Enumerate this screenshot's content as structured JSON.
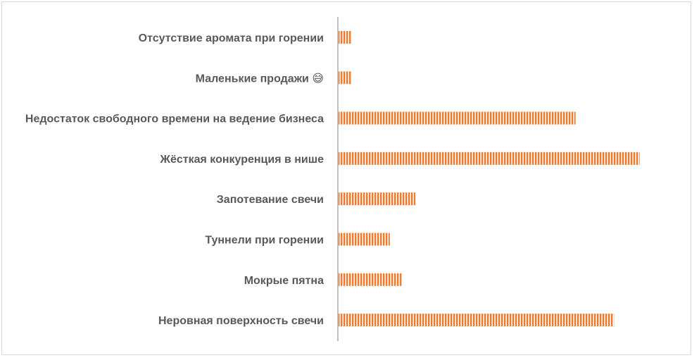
{
  "chart_data": {
    "type": "bar",
    "orientation": "horizontal",
    "title": "",
    "xlabel": "",
    "ylabel": "",
    "categories": [
      "Отсутствие аромата при горении",
      "Маленькие продажи 😅",
      "Недостаток свободного времени на ведение бизнеса",
      "Жёсткая конкуренция в нише",
      "Запотевание свечи",
      "Туннели при горении",
      "Мокрые пятна",
      "Неровная поверхность свечи"
    ],
    "values": [
      2,
      2,
      37,
      47,
      12,
      8,
      10,
      43
    ],
    "xlim": [
      0,
      50
    ],
    "grid": false,
    "legend": "none",
    "axis_labels_visible": false,
    "colors": {
      "bar": "#ed7d31",
      "bar_stripe": "#ffffff",
      "axis": "#bfbfbf",
      "label": "#595959",
      "border": "#d9d9d9"
    }
  }
}
